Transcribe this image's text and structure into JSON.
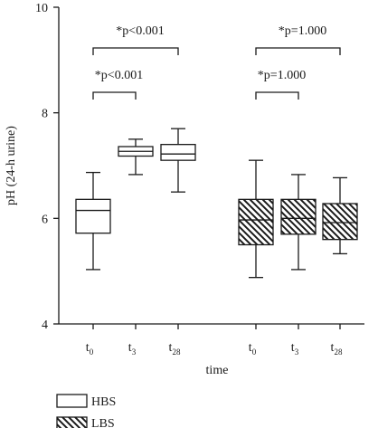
{
  "chart_data": {
    "type": "box",
    "ylabel": "pH (24-h urine)",
    "xlabel": "time",
    "ylim": [
      4,
      10
    ],
    "yticks": [
      4,
      6,
      8,
      10
    ],
    "grid": false,
    "legend_position": "bottom-left",
    "groups": [
      {
        "name": "HBS",
        "fill": "plain",
        "boxes": [
          {
            "label": "t",
            "sub": "0",
            "min": 5.03,
            "q1": 5.72,
            "median": 6.15,
            "q3": 6.36,
            "max": 6.87
          },
          {
            "label": "t",
            "sub": "3",
            "min": 6.83,
            "q1": 7.18,
            "median": 7.27,
            "q3": 7.36,
            "max": 7.5
          },
          {
            "label": "t",
            "sub": "28",
            "min": 6.5,
            "q1": 7.1,
            "median": 7.22,
            "q3": 7.4,
            "max": 7.7
          }
        ]
      },
      {
        "name": "LBS",
        "fill": "hatched",
        "boxes": [
          {
            "label": "t",
            "sub": "0",
            "min": 4.88,
            "q1": 5.5,
            "median": 5.97,
            "q3": 6.36,
            "max": 7.1
          },
          {
            "label": "t",
            "sub": "3",
            "min": 5.03,
            "q1": 5.7,
            "median": 6.0,
            "q3": 6.36,
            "max": 6.83
          },
          {
            "label": "t",
            "sub": "28",
            "min": 5.33,
            "q1": 5.6,
            "median": 5.92,
            "q3": 6.28,
            "max": 6.77
          }
        ]
      }
    ],
    "annotations": [
      {
        "text": "*p<0.001",
        "group": 0,
        "from": 0,
        "to": 1
      },
      {
        "text": "*p<0.001",
        "group": 0,
        "from": 0,
        "to": 2
      },
      {
        "text": "*p=1.000",
        "group": 1,
        "from": 0,
        "to": 1
      },
      {
        "text": "*p=1.000",
        "group": 1,
        "from": 0,
        "to": 2
      }
    ]
  }
}
